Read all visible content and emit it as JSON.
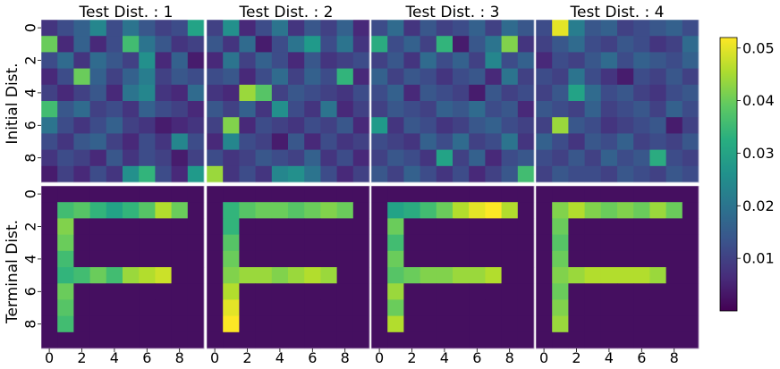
{
  "chart_data": {
    "type": "heatmap",
    "column_titles": [
      "Test Dist. : 1",
      "Test Dist. : 2",
      "Test Dist. : 3",
      "Test Dist. : 4"
    ],
    "row_labels": [
      "Initial Dist.",
      "Terminal Dist."
    ],
    "tick_labels": [
      "0",
      "2",
      "4",
      "6",
      "8"
    ],
    "colorbar": {
      "min": 0.0,
      "max": 0.052,
      "ticks": [
        "0.01",
        "0.02",
        "0.03",
        "0.04",
        "0.05"
      ],
      "tick_values": [
        0.01,
        0.02,
        0.03,
        0.04,
        0.05
      ]
    },
    "colors": {
      "viridis_dark": "#440154",
      "viridis_light": "#fde725"
    },
    "initial": [
      [
        [
          0.008,
          0.012,
          0.016,
          0.024,
          0.012,
          0.02,
          0.014,
          0.01,
          0.012,
          0.03
        ],
        [
          0.04,
          0.006,
          0.016,
          0.006,
          0.012,
          0.036,
          0.02,
          0.014,
          0.008,
          0.01
        ],
        [
          0.012,
          0.018,
          0.008,
          0.018,
          0.014,
          0.01,
          0.026,
          0.006,
          0.016,
          0.004
        ],
        [
          0.006,
          0.012,
          0.04,
          0.016,
          0.01,
          0.016,
          0.022,
          0.01,
          0.014,
          0.012
        ],
        [
          0.01,
          0.006,
          0.01,
          0.014,
          0.006,
          0.02,
          0.024,
          0.008,
          0.006,
          0.018
        ],
        [
          0.036,
          0.014,
          0.018,
          0.01,
          0.012,
          0.008,
          0.016,
          0.012,
          0.01,
          0.006
        ],
        [
          0.02,
          0.012,
          0.008,
          0.012,
          0.016,
          0.01,
          0.008,
          0.004,
          0.006,
          0.008
        ],
        [
          0.012,
          0.008,
          0.014,
          0.016,
          0.01,
          0.006,
          0.012,
          0.008,
          0.024,
          0.012
        ],
        [
          0.008,
          0.012,
          0.01,
          0.006,
          0.014,
          0.008,
          0.012,
          0.01,
          0.004,
          0.01
        ],
        [
          0.004,
          0.01,
          0.006,
          0.012,
          0.008,
          0.026,
          0.034,
          0.012,
          0.006,
          0.028
        ]
      ],
      [
        [
          0.01,
          0.026,
          0.006,
          0.012,
          0.02,
          0.008,
          0.014,
          0.01,
          0.016,
          0.006
        ],
        [
          0.014,
          0.008,
          0.018,
          0.004,
          0.012,
          0.02,
          0.028,
          0.012,
          0.02,
          0.008
        ],
        [
          0.006,
          0.02,
          0.01,
          0.016,
          0.012,
          0.006,
          0.014,
          0.008,
          0.01,
          0.012
        ],
        [
          0.012,
          0.014,
          0.006,
          0.012,
          0.018,
          0.01,
          0.016,
          0.012,
          0.034,
          0.006
        ],
        [
          0.008,
          0.006,
          0.044,
          0.038,
          0.01,
          0.014,
          0.012,
          0.01,
          0.008,
          0.012
        ],
        [
          0.014,
          0.01,
          0.016,
          0.008,
          0.026,
          0.012,
          0.008,
          0.02,
          0.006,
          0.01
        ],
        [
          0.01,
          0.042,
          0.006,
          0.012,
          0.01,
          0.008,
          0.012,
          0.01,
          0.014,
          0.006
        ],
        [
          0.006,
          0.024,
          0.012,
          0.01,
          0.004,
          0.014,
          0.006,
          0.012,
          0.008,
          0.01
        ],
        [
          0.012,
          0.008,
          0.01,
          0.014,
          0.012,
          0.01,
          0.016,
          0.008,
          0.012,
          0.006
        ],
        [
          0.044,
          0.008,
          0.012,
          0.008,
          0.024,
          0.026,
          0.02,
          0.012,
          0.006,
          0.01
        ]
      ],
      [
        [
          0.012,
          0.018,
          0.008,
          0.014,
          0.01,
          0.012,
          0.016,
          0.01,
          0.018,
          0.014
        ],
        [
          0.032,
          0.012,
          0.016,
          0.01,
          0.034,
          0.004,
          0.014,
          0.02,
          0.042,
          0.008
        ],
        [
          0.01,
          0.014,
          0.008,
          0.018,
          0.012,
          0.016,
          0.01,
          0.024,
          0.012,
          0.016
        ],
        [
          0.016,
          0.01,
          0.014,
          0.012,
          0.008,
          0.012,
          0.014,
          0.006,
          0.02,
          0.01
        ],
        [
          0.012,
          0.016,
          0.006,
          0.014,
          0.012,
          0.01,
          0.004,
          0.014,
          0.01,
          0.012
        ],
        [
          0.01,
          0.014,
          0.012,
          0.01,
          0.016,
          0.014,
          0.018,
          0.012,
          0.014,
          0.006
        ],
        [
          0.028,
          0.008,
          0.014,
          0.012,
          0.008,
          0.01,
          0.014,
          0.016,
          0.012,
          0.01
        ],
        [
          0.012,
          0.01,
          0.008,
          0.016,
          0.012,
          0.018,
          0.01,
          0.012,
          0.02,
          0.008
        ],
        [
          0.01,
          0.014,
          0.012,
          0.008,
          0.03,
          0.01,
          0.016,
          0.006,
          0.012,
          0.014
        ],
        [
          0.014,
          0.01,
          0.016,
          0.012,
          0.008,
          0.012,
          0.006,
          0.01,
          0.014,
          0.036
        ]
      ],
      [
        [
          0.012,
          0.05,
          0.022,
          0.014,
          0.016,
          0.01,
          0.012,
          0.014,
          0.016,
          0.012
        ],
        [
          0.01,
          0.014,
          0.018,
          0.012,
          0.01,
          0.014,
          0.012,
          0.008,
          0.01,
          0.018
        ],
        [
          0.006,
          0.012,
          0.01,
          0.014,
          0.018,
          0.012,
          0.016,
          0.014,
          0.012,
          0.016
        ],
        [
          0.012,
          0.01,
          0.02,
          0.012,
          0.008,
          0.004,
          0.012,
          0.01,
          0.014,
          0.01
        ],
        [
          0.01,
          0.014,
          0.03,
          0.018,
          0.012,
          0.014,
          0.01,
          0.008,
          0.012,
          0.014
        ],
        [
          0.014,
          0.012,
          0.01,
          0.016,
          0.01,
          0.012,
          0.014,
          0.01,
          0.016,
          0.012
        ],
        [
          0.01,
          0.044,
          0.014,
          0.012,
          0.008,
          0.01,
          0.012,
          0.014,
          0.004,
          0.01
        ],
        [
          0.016,
          0.012,
          0.008,
          0.014,
          0.012,
          0.016,
          0.01,
          0.012,
          0.01,
          0.014
        ],
        [
          0.012,
          0.01,
          0.014,
          0.01,
          0.016,
          0.012,
          0.014,
          0.032,
          0.012,
          0.01
        ],
        [
          0.01,
          0.014,
          0.012,
          0.012,
          0.01,
          0.014,
          0.012,
          0.01,
          0.014,
          0.012
        ]
      ]
    ],
    "terminal": [
      [
        [
          0.002,
          0.002,
          0.002,
          0.002,
          0.002,
          0.002,
          0.002,
          0.002,
          0.002,
          0.002
        ],
        [
          0.002,
          0.036,
          0.038,
          0.034,
          0.03,
          0.034,
          0.038,
          0.046,
          0.04,
          0.002
        ],
        [
          0.002,
          0.042,
          0.002,
          0.002,
          0.002,
          0.002,
          0.002,
          0.002,
          0.002,
          0.002
        ],
        [
          0.002,
          0.04,
          0.002,
          0.002,
          0.002,
          0.002,
          0.002,
          0.002,
          0.002,
          0.002
        ],
        [
          0.002,
          0.036,
          0.002,
          0.002,
          0.002,
          0.002,
          0.002,
          0.002,
          0.002,
          0.002
        ],
        [
          0.002,
          0.034,
          0.036,
          0.04,
          0.036,
          0.044,
          0.046,
          0.048,
          0.002,
          0.002
        ],
        [
          0.002,
          0.04,
          0.002,
          0.002,
          0.002,
          0.002,
          0.002,
          0.002,
          0.002,
          0.002
        ],
        [
          0.002,
          0.038,
          0.002,
          0.002,
          0.002,
          0.002,
          0.002,
          0.002,
          0.002,
          0.002
        ],
        [
          0.002,
          0.036,
          0.002,
          0.002,
          0.002,
          0.002,
          0.002,
          0.002,
          0.002,
          0.002
        ],
        [
          0.002,
          0.002,
          0.002,
          0.002,
          0.002,
          0.002,
          0.002,
          0.002,
          0.002,
          0.002
        ]
      ],
      [
        [
          0.002,
          0.002,
          0.002,
          0.002,
          0.002,
          0.002,
          0.002,
          0.002,
          0.002,
          0.002
        ],
        [
          0.002,
          0.034,
          0.038,
          0.04,
          0.04,
          0.038,
          0.04,
          0.042,
          0.04,
          0.002
        ],
        [
          0.002,
          0.034,
          0.002,
          0.002,
          0.002,
          0.002,
          0.002,
          0.002,
          0.002,
          0.002
        ],
        [
          0.002,
          0.038,
          0.002,
          0.002,
          0.002,
          0.002,
          0.002,
          0.002,
          0.002,
          0.002
        ],
        [
          0.002,
          0.04,
          0.002,
          0.002,
          0.002,
          0.002,
          0.002,
          0.002,
          0.002,
          0.002
        ],
        [
          0.002,
          0.042,
          0.044,
          0.044,
          0.042,
          0.044,
          0.046,
          0.044,
          0.002,
          0.002
        ],
        [
          0.002,
          0.046,
          0.002,
          0.002,
          0.002,
          0.002,
          0.002,
          0.002,
          0.002,
          0.002
        ],
        [
          0.002,
          0.05,
          0.002,
          0.002,
          0.002,
          0.002,
          0.002,
          0.002,
          0.002,
          0.002
        ],
        [
          0.002,
          0.052,
          0.002,
          0.002,
          0.002,
          0.002,
          0.002,
          0.002,
          0.002,
          0.002
        ],
        [
          0.002,
          0.002,
          0.002,
          0.002,
          0.002,
          0.002,
          0.002,
          0.002,
          0.002,
          0.002
        ]
      ],
      [
        [
          0.002,
          0.002,
          0.002,
          0.002,
          0.002,
          0.002,
          0.002,
          0.002,
          0.002,
          0.002
        ],
        [
          0.002,
          0.03,
          0.032,
          0.036,
          0.04,
          0.046,
          0.05,
          0.052,
          0.046,
          0.002
        ],
        [
          0.002,
          0.04,
          0.002,
          0.002,
          0.002,
          0.002,
          0.002,
          0.002,
          0.002,
          0.002
        ],
        [
          0.002,
          0.036,
          0.002,
          0.002,
          0.002,
          0.002,
          0.002,
          0.002,
          0.002,
          0.002
        ],
        [
          0.002,
          0.04,
          0.002,
          0.002,
          0.002,
          0.002,
          0.002,
          0.002,
          0.002,
          0.002
        ],
        [
          0.002,
          0.038,
          0.04,
          0.042,
          0.042,
          0.044,
          0.044,
          0.046,
          0.002,
          0.002
        ],
        [
          0.002,
          0.044,
          0.002,
          0.002,
          0.002,
          0.002,
          0.002,
          0.002,
          0.002,
          0.002
        ],
        [
          0.002,
          0.04,
          0.002,
          0.002,
          0.002,
          0.002,
          0.002,
          0.002,
          0.002,
          0.002
        ],
        [
          0.002,
          0.046,
          0.002,
          0.002,
          0.002,
          0.002,
          0.002,
          0.002,
          0.002,
          0.002
        ],
        [
          0.002,
          0.002,
          0.002,
          0.002,
          0.002,
          0.002,
          0.002,
          0.002,
          0.002,
          0.002
        ]
      ],
      [
        [
          0.002,
          0.002,
          0.002,
          0.002,
          0.002,
          0.002,
          0.002,
          0.002,
          0.002,
          0.002
        ],
        [
          0.002,
          0.042,
          0.046,
          0.042,
          0.04,
          0.042,
          0.04,
          0.044,
          0.04,
          0.002
        ],
        [
          0.002,
          0.04,
          0.002,
          0.002,
          0.002,
          0.002,
          0.002,
          0.002,
          0.002,
          0.002
        ],
        [
          0.002,
          0.038,
          0.002,
          0.002,
          0.002,
          0.002,
          0.002,
          0.002,
          0.002,
          0.002
        ],
        [
          0.002,
          0.04,
          0.002,
          0.002,
          0.002,
          0.002,
          0.002,
          0.002,
          0.002,
          0.002
        ],
        [
          0.002,
          0.042,
          0.044,
          0.046,
          0.046,
          0.046,
          0.046,
          0.044,
          0.002,
          0.002
        ],
        [
          0.002,
          0.04,
          0.002,
          0.002,
          0.002,
          0.002,
          0.002,
          0.002,
          0.002,
          0.002
        ],
        [
          0.002,
          0.042,
          0.002,
          0.002,
          0.002,
          0.002,
          0.002,
          0.002,
          0.002,
          0.002
        ],
        [
          0.002,
          0.044,
          0.002,
          0.002,
          0.002,
          0.002,
          0.002,
          0.002,
          0.002,
          0.002
        ],
        [
          0.002,
          0.002,
          0.002,
          0.002,
          0.002,
          0.002,
          0.002,
          0.002,
          0.002,
          0.002
        ]
      ]
    ]
  }
}
